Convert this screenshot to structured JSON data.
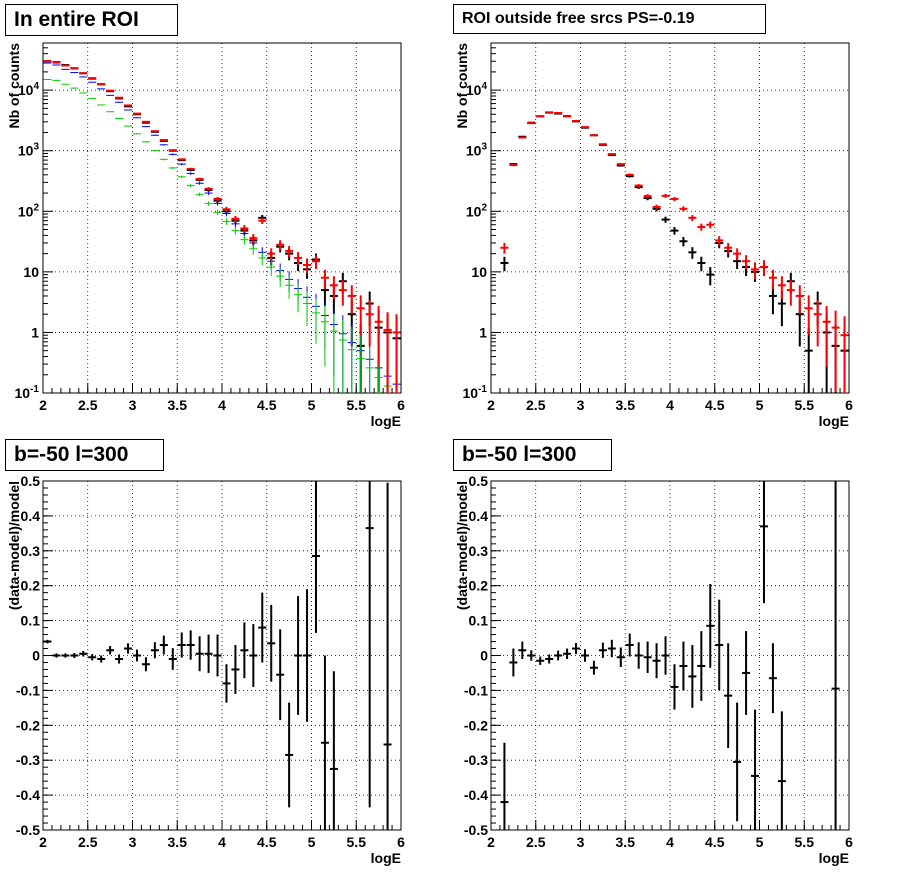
{
  "chart_data": [
    {
      "type": "scatter",
      "title": "In entire ROI",
      "xlabel": "logE",
      "ylabel": "Nb of counts",
      "xlim": [
        2,
        6
      ],
      "ylim": [
        0.1,
        60000
      ],
      "log_y": true,
      "grid": true,
      "x_ticks": [
        "2",
        "2.5",
        "3",
        "3.5",
        "4",
        "4.5",
        "5",
        "5.5",
        "6"
      ],
      "y_ticks": [
        "10^-1",
        "1",
        "10",
        "10^2",
        "10^3",
        "10^4"
      ],
      "series": [
        {
          "color": "#000000",
          "x": [
            2.05,
            2.15,
            2.25,
            2.35,
            2.45,
            2.55,
            2.65,
            2.75,
            2.85,
            2.95,
            3.05,
            3.15,
            3.25,
            3.35,
            3.45,
            3.55,
            3.65,
            3.75,
            3.85,
            3.95,
            4.05,
            4.15,
            4.25,
            4.35,
            4.45,
            4.55,
            4.65,
            4.75,
            4.85,
            4.95,
            5.05,
            5.15,
            5.25,
            5.35,
            5.45,
            5.55,
            5.65,
            5.75,
            5.85,
            5.95
          ],
          "values": [
            30000,
            29000,
            26000,
            23000,
            19000,
            15500,
            12500,
            9600,
            7300,
            5400,
            4000,
            2900,
            2050,
            1450,
            1000,
            700,
            480,
            330,
            225,
            150,
            100,
            70,
            48,
            33,
            78,
            17,
            26,
            20,
            14,
            11,
            16,
            5,
            4,
            7,
            2,
            0.6,
            3,
            1.2,
            1,
            0.8
          ]
        },
        {
          "color": "#0000ff",
          "x": [
            2.05,
            2.15,
            2.25,
            2.35,
            2.45,
            2.55,
            2.65,
            2.75,
            2.85,
            2.95,
            3.05,
            3.15,
            3.25,
            3.35,
            3.45,
            3.55,
            3.65,
            3.75,
            3.85,
            3.95,
            4.05,
            4.15,
            4.25,
            4.35,
            4.45,
            4.55,
            4.65,
            4.75,
            4.85,
            4.95,
            5.05,
            5.15,
            5.25,
            5.35,
            5.45,
            5.55,
            5.65,
            5.75,
            5.85,
            5.95
          ],
          "values": [
            28000,
            26000,
            22000,
            19500,
            16500,
            13500,
            10500,
            8200,
            6300,
            4700,
            3500,
            2500,
            1800,
            1250,
            870,
            600,
            420,
            290,
            200,
            135,
            92,
            62,
            43,
            30,
            21,
            15,
            10.5,
            7.5,
            5.3,
            3.8,
            2.7,
            1.9,
            1.35,
            0.95,
            0.68,
            0.5,
            0.36,
            0.26,
            0.19,
            0.14
          ]
        },
        {
          "color": "#00cc00",
          "x": [
            2.05,
            2.15,
            2.25,
            2.35,
            2.45,
            2.55,
            2.65,
            2.75,
            2.85,
            2.95,
            3.05,
            3.15,
            3.25,
            3.35,
            3.45,
            3.55,
            3.65,
            3.75,
            3.85,
            3.95,
            4.05,
            4.15,
            4.25,
            4.35,
            4.45,
            4.55,
            4.65,
            4.75,
            4.85,
            4.95,
            5.05,
            5.15,
            5.25,
            5.35,
            5.45,
            5.55,
            5.65,
            5.75,
            5.85,
            5.95
          ],
          "values": [
            15000,
            14500,
            12500,
            10800,
            9000,
            7300,
            5700,
            4400,
            3400,
            2550,
            1900,
            1400,
            1000,
            720,
            520,
            370,
            265,
            190,
            135,
            96,
            68,
            48,
            34,
            24,
            17,
            12,
            8.5,
            6,
            4.2,
            3,
            2.1,
            1.5,
            1.05,
            0.75,
            0.52,
            0.37,
            0.26,
            0.18,
            0.13,
            0.09
          ]
        },
        {
          "color": "#ff0000",
          "x": [
            2.05,
            2.15,
            2.25,
            2.35,
            2.45,
            2.55,
            2.65,
            2.75,
            2.85,
            2.95,
            3.05,
            3.15,
            3.25,
            3.35,
            3.45,
            3.55,
            3.65,
            3.75,
            3.85,
            3.95,
            4.05,
            4.15,
            4.25,
            4.35,
            4.45,
            4.55,
            4.65,
            4.75,
            4.85,
            4.95,
            5.05,
            5.15,
            5.25,
            5.35,
            5.45,
            5.55,
            5.65,
            5.75,
            5.85,
            5.95
          ],
          "values": [
            30000,
            28500,
            25500,
            22800,
            19000,
            15800,
            12600,
            9800,
            7500,
            5600,
            4100,
            3000,
            2100,
            1500,
            1020,
            720,
            500,
            340,
            235,
            160,
            108,
            75,
            52,
            36,
            70,
            20,
            28,
            22,
            17,
            13,
            15,
            8,
            6,
            5,
            4,
            2.5,
            2,
            1.5,
            1.1,
            1
          ]
        }
      ]
    },
    {
      "type": "scatter",
      "title": "ROI outside free srcs PS=-0.19",
      "xlabel": "logE",
      "ylabel": "Nb of counts",
      "xlim": [
        2,
        6
      ],
      "ylim": [
        0.1,
        60000
      ],
      "log_y": true,
      "grid": true,
      "x_ticks": [
        "2",
        "2.5",
        "3",
        "3.5",
        "4",
        "4.5",
        "5",
        "5.5",
        "6"
      ],
      "y_ticks": [
        "10^-1",
        "1",
        "10",
        "10^2",
        "10^3",
        "10^4"
      ],
      "series": [
        {
          "color": "#000000",
          "x": [
            2.15,
            2.25,
            2.35,
            2.45,
            2.55,
            2.65,
            2.75,
            2.85,
            2.95,
            3.05,
            3.15,
            3.25,
            3.35,
            3.45,
            3.55,
            3.65,
            3.75,
            3.85,
            3.95,
            4.05,
            4.15,
            4.25,
            4.35,
            4.45,
            4.55,
            4.65,
            4.75,
            4.85,
            4.95,
            5.05,
            5.15,
            5.25,
            5.35,
            5.45,
            5.55,
            5.65,
            5.75,
            5.85,
            5.95
          ],
          "values": [
            14,
            600,
            1700,
            2900,
            3700,
            4250,
            4100,
            3700,
            3050,
            2400,
            1800,
            1250,
            850,
            570,
            380,
            250,
            165,
            110,
            73,
            48,
            32,
            21,
            14,
            9,
            30,
            22,
            15,
            12,
            10,
            12,
            4,
            3,
            7,
            2,
            0.5,
            3,
            1,
            0.6,
            0.5
          ]
        },
        {
          "color": "#ff0000",
          "x": [
            2.15,
            2.25,
            2.35,
            2.45,
            2.55,
            2.65,
            2.75,
            2.85,
            2.95,
            3.05,
            3.15,
            3.25,
            3.35,
            3.45,
            3.55,
            3.65,
            3.75,
            3.85,
            3.95,
            4.05,
            4.15,
            4.25,
            4.35,
            4.45,
            4.55,
            4.65,
            4.75,
            4.85,
            4.95,
            5.05,
            5.15,
            5.25,
            5.35,
            5.45,
            5.55,
            5.65,
            5.75,
            5.85,
            5.95
          ],
          "values": [
            25,
            580,
            1650,
            2850,
            3700,
            4300,
            4200,
            3750,
            3100,
            2450,
            1800,
            1280,
            880,
            600,
            400,
            265,
            178,
            118,
            180,
            160,
            110,
            78,
            55,
            60,
            33,
            25,
            20,
            15,
            11,
            12,
            8,
            6,
            5,
            4,
            2.5,
            2,
            1.5,
            1.2,
            0.9
          ]
        }
      ]
    },
    {
      "type": "scatter",
      "title": "b=-50 l=300",
      "xlabel": "logE",
      "ylabel": "(data-model)/model",
      "xlim": [
        2,
        6
      ],
      "ylim": [
        -0.5,
        0.5
      ],
      "grid": true,
      "x_ticks": [
        "2",
        "2.5",
        "3",
        "3.5",
        "4",
        "4.5",
        "5",
        "5.5",
        "6"
      ],
      "y_ticks": [
        "-0.5",
        "-0.4",
        "-0.3",
        "-0.2",
        "-0.1",
        "0",
        "0.1",
        "0.2",
        "0.3",
        "0.4",
        "0.5"
      ],
      "series": [
        {
          "color": "#000000",
          "x": [
            2.05,
            2.15,
            2.25,
            2.35,
            2.45,
            2.55,
            2.65,
            2.75,
            2.85,
            2.95,
            3.05,
            3.15,
            3.25,
            3.35,
            3.45,
            3.55,
            3.65,
            3.75,
            3.85,
            3.95,
            4.05,
            4.15,
            4.25,
            4.35,
            4.45,
            4.55,
            4.65,
            4.75,
            4.85,
            4.95,
            5.05,
            5.15,
            5.25,
            5.65,
            5.85
          ],
          "values": [
            0.04,
            0.0,
            0.0,
            0.0,
            0.005,
            -0.005,
            -0.01,
            0.015,
            -0.01,
            0.02,
            0.0,
            -0.025,
            0.015,
            0.03,
            -0.01,
            0.03,
            0.03,
            0.005,
            0.005,
            0.0,
            -0.08,
            -0.04,
            0.015,
            0.0,
            0.08,
            0.035,
            -0.055,
            -0.285,
            0.0,
            0.0,
            0.285,
            -0.25,
            -0.325,
            0.365,
            -0.255
          ],
          "errors": [
            0.005,
            0.006,
            0.006,
            0.007,
            0.008,
            0.009,
            0.01,
            0.012,
            0.013,
            0.015,
            0.017,
            0.02,
            0.023,
            0.027,
            0.031,
            0.036,
            0.042,
            0.05,
            0.055,
            0.06,
            0.055,
            0.07,
            0.08,
            0.09,
            0.1,
            0.11,
            0.13,
            0.15,
            0.17,
            0.19,
            0.22,
            0.25,
            0.28,
            0.8,
            0.75
          ]
        }
      ]
    },
    {
      "type": "scatter",
      "title": "b=-50 l=300",
      "xlabel": "logE",
      "ylabel": "(data-model)/model",
      "xlim": [
        2,
        6
      ],
      "ylim": [
        -0.5,
        0.5
      ],
      "grid": true,
      "x_ticks": [
        "2",
        "2.5",
        "3",
        "3.5",
        "4",
        "4.5",
        "5",
        "5.5",
        "6"
      ],
      "y_ticks": [
        "-0.5",
        "-0.4",
        "-0.3",
        "-0.2",
        "-0.1",
        "0",
        "0.1",
        "0.2",
        "0.3",
        "0.4",
        "0.5"
      ],
      "series": [
        {
          "color": "#000000",
          "x": [
            2.15,
            2.25,
            2.35,
            2.45,
            2.55,
            2.65,
            2.75,
            2.85,
            2.95,
            3.05,
            3.15,
            3.25,
            3.35,
            3.45,
            3.55,
            3.65,
            3.75,
            3.85,
            3.95,
            4.05,
            4.15,
            4.25,
            4.35,
            4.45,
            4.55,
            4.65,
            4.75,
            4.85,
            4.95,
            5.05,
            5.15,
            5.25,
            5.85
          ],
          "values": [
            -0.42,
            -0.02,
            0.015,
            0.0,
            -0.015,
            -0.01,
            0.0,
            0.005,
            0.02,
            0.0,
            -0.035,
            0.015,
            0.02,
            -0.005,
            0.03,
            0.0,
            -0.005,
            -0.015,
            0.0,
            -0.09,
            -0.03,
            -0.06,
            -0.03,
            0.085,
            0.03,
            -0.115,
            -0.305,
            -0.05,
            -0.345,
            0.37,
            -0.065,
            -0.36,
            -0.095
          ],
          "errors": [
            0.17,
            0.04,
            0.025,
            0.015,
            0.012,
            0.013,
            0.014,
            0.015,
            0.016,
            0.018,
            0.02,
            0.022,
            0.025,
            0.028,
            0.033,
            0.038,
            0.045,
            0.05,
            0.055,
            0.065,
            0.07,
            0.09,
            0.1,
            0.12,
            0.13,
            0.15,
            0.17,
            0.12,
            0.19,
            0.22,
            0.1,
            0.2,
            0.65
          ]
        }
      ]
    }
  ]
}
